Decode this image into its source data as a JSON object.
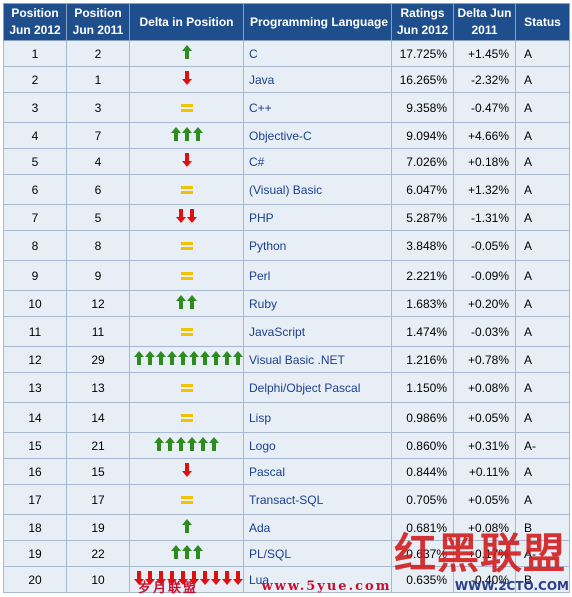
{
  "colors": {
    "header_bg": "#1f4e8c",
    "row_bg": "#e8eef6",
    "up_arrow": "#2e8b1e",
    "down_arrow": "#e01010",
    "equal": "#f2c200"
  },
  "headers": [
    "Position Jun 2012",
    "Position Jun 2011",
    "Delta in Position",
    "Programming Language",
    "Ratings Jun 2012",
    "Delta Jun 2011",
    "Status"
  ],
  "rows": [
    {
      "pos2012": "1",
      "pos2011": "2",
      "delta": {
        "dir": "up",
        "count": 1
      },
      "language": "C",
      "rating": "17.725%",
      "change": "+1.45%",
      "status": "A"
    },
    {
      "pos2012": "2",
      "pos2011": "1",
      "delta": {
        "dir": "down",
        "count": 1
      },
      "language": "Java",
      "rating": "16.265%",
      "change": "-2.32%",
      "status": "A"
    },
    {
      "pos2012": "3",
      "pos2011": "3",
      "delta": {
        "dir": "equal",
        "count": 1
      },
      "language": "C++",
      "rating": "9.358%",
      "change": "-0.47%",
      "status": "A"
    },
    {
      "pos2012": "4",
      "pos2011": "7",
      "delta": {
        "dir": "up",
        "count": 3
      },
      "language": "Objective-C",
      "rating": "9.094%",
      "change": "+4.66%",
      "status": "A"
    },
    {
      "pos2012": "5",
      "pos2011": "4",
      "delta": {
        "dir": "down",
        "count": 1
      },
      "language": "C#",
      "rating": "7.026%",
      "change": "+0.18%",
      "status": "A"
    },
    {
      "pos2012": "6",
      "pos2011": "6",
      "delta": {
        "dir": "equal",
        "count": 1
      },
      "language": "(Visual) Basic",
      "rating": "6.047%",
      "change": "+1.32%",
      "status": "A"
    },
    {
      "pos2012": "7",
      "pos2011": "5",
      "delta": {
        "dir": "down",
        "count": 2
      },
      "language": "PHP",
      "rating": "5.287%",
      "change": "-1.31%",
      "status": "A"
    },
    {
      "pos2012": "8",
      "pos2011": "8",
      "delta": {
        "dir": "equal",
        "count": 1
      },
      "language": "Python",
      "rating": "3.848%",
      "change": "-0.05%",
      "status": "A"
    },
    {
      "pos2012": "9",
      "pos2011": "9",
      "delta": {
        "dir": "equal",
        "count": 1
      },
      "language": "Perl",
      "rating": "2.221%",
      "change": "-0.09%",
      "status": "A"
    },
    {
      "pos2012": "10",
      "pos2011": "12",
      "delta": {
        "dir": "up",
        "count": 2
      },
      "language": "Ruby",
      "rating": "1.683%",
      "change": "+0.20%",
      "status": "A"
    },
    {
      "pos2012": "11",
      "pos2011": "11",
      "delta": {
        "dir": "equal",
        "count": 1
      },
      "language": "JavaScript",
      "rating": "1.474%",
      "change": "-0.03%",
      "status": "A"
    },
    {
      "pos2012": "12",
      "pos2011": "29",
      "delta": {
        "dir": "up",
        "count": 10
      },
      "language": "Visual Basic .NET",
      "rating": "1.216%",
      "change": "+0.78%",
      "status": "A"
    },
    {
      "pos2012": "13",
      "pos2011": "13",
      "delta": {
        "dir": "equal",
        "count": 1
      },
      "language": "Delphi/Object Pascal",
      "rating": "1.150%",
      "change": "+0.08%",
      "status": "A"
    },
    {
      "pos2012": "14",
      "pos2011": "14",
      "delta": {
        "dir": "equal",
        "count": 1
      },
      "language": "Lisp",
      "rating": "0.986%",
      "change": "+0.05%",
      "status": "A"
    },
    {
      "pos2012": "15",
      "pos2011": "21",
      "delta": {
        "dir": "up",
        "count": 6
      },
      "language": "Logo",
      "rating": "0.860%",
      "change": "+0.31%",
      "status": "A-"
    },
    {
      "pos2012": "16",
      "pos2011": "15",
      "delta": {
        "dir": "down",
        "count": 1
      },
      "language": "Pascal",
      "rating": "0.844%",
      "change": "+0.11%",
      "status": "A"
    },
    {
      "pos2012": "17",
      "pos2011": "17",
      "delta": {
        "dir": "equal",
        "count": 1
      },
      "language": "Transact-SQL",
      "rating": "0.705%",
      "change": "+0.05%",
      "status": "A"
    },
    {
      "pos2012": "18",
      "pos2011": "19",
      "delta": {
        "dir": "up",
        "count": 1
      },
      "language": "Ada",
      "rating": "0.681%",
      "change": "+0.08%",
      "status": "B"
    },
    {
      "pos2012": "19",
      "pos2011": "22",
      "delta": {
        "dir": "up",
        "count": 3
      },
      "language": "PL/SQL",
      "rating": "0.637%",
      "change": "+0.17%",
      "status": "A-"
    },
    {
      "pos2012": "20",
      "pos2011": "10",
      "delta": {
        "dir": "down",
        "count": 10
      },
      "language": "Lua",
      "rating": "0.635%",
      "change": "-0.40%",
      "status": "B"
    }
  ],
  "watermarks": {
    "stamp": "红黑联盟",
    "site_cn": "岁月联盟",
    "site_url": "www.5yue.com",
    "site_url2": "WWW.2CTO.COM"
  }
}
